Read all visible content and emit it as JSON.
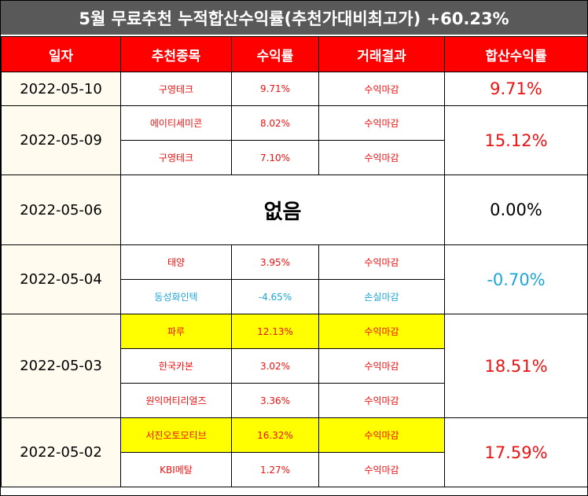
{
  "title": "5월 무료추천 누적합산수익률(추천가대비최고가) +60.23%",
  "headers": [
    "일자",
    "추천종목",
    "수익률",
    "거래결과",
    "합산수익률"
  ],
  "groups": [
    {
      "date": "2022-05-10",
      "sum": "9.71%",
      "sum_color": "red",
      "rows": [
        {
          "stock": "구영테크",
          "rate": "9.71%",
          "result": "수익마감"
        }
      ]
    },
    {
      "date": "2022-05-09",
      "sum": "15.12%",
      "sum_color": "red",
      "rows": [
        {
          "stock": "에이티세미콘",
          "rate": "8.02%",
          "result": "수익마감"
        },
        {
          "stock": "구영테크",
          "rate": "7.10%",
          "result": "수익마감"
        }
      ]
    },
    {
      "date": "2022-05-06",
      "sum": "0.00%",
      "sum_color": "black",
      "none_label": "없음",
      "rows": []
    },
    {
      "date": "2022-05-04",
      "sum": "-0.70%",
      "sum_color": "blue",
      "rows": [
        {
          "stock": "태양",
          "rate": "3.95%",
          "result": "수익마감"
        },
        {
          "stock": "동성화인텍",
          "rate": "-4.65%",
          "result": "손실마감",
          "color": "blue"
        }
      ]
    },
    {
      "date": "2022-05-03",
      "sum": "18.51%",
      "sum_color": "red",
      "rows": [
        {
          "stock": "파루",
          "rate": "12.13%",
          "result": "수익마감",
          "highlight": true
        },
        {
          "stock": "한국카본",
          "rate": "3.02%",
          "result": "수익마감"
        },
        {
          "stock": "원익머티리얼즈",
          "rate": "3.36%",
          "result": "수익마감"
        }
      ]
    },
    {
      "date": "2022-05-02",
      "sum": "17.59%",
      "sum_color": "red",
      "rows": [
        {
          "stock": "서진오토모티브",
          "rate": "16.32%",
          "result": "수익마감",
          "highlight": true
        },
        {
          "stock": "KBI메탈",
          "rate": "1.27%",
          "result": "수익마감"
        }
      ]
    }
  ]
}
